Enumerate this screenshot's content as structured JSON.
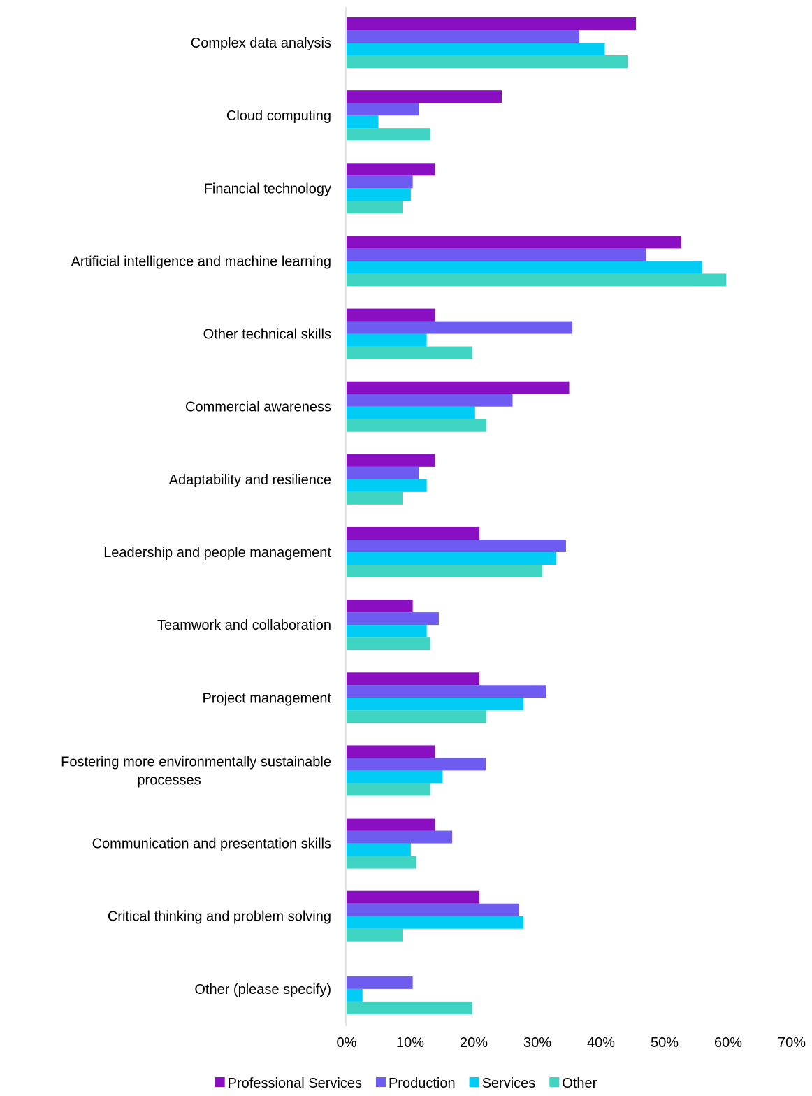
{
  "chart_data": {
    "type": "bar",
    "orientation": "horizontal",
    "title": "",
    "xlabel": "",
    "ylabel": "",
    "xlim": [
      0,
      70
    ],
    "x_ticks": [
      "0%",
      "10%",
      "20%",
      "30%",
      "40%",
      "50%",
      "60%",
      "70%"
    ],
    "grid": false,
    "legend_position": "bottom",
    "categories": [
      [
        "Complex data analysis"
      ],
      [
        "Cloud computing"
      ],
      [
        "Financial technology"
      ],
      [
        "Artificial intelligence and machine learning"
      ],
      [
        "Other technical skills"
      ],
      [
        "Commercial awareness"
      ],
      [
        "Adaptability and resilience"
      ],
      [
        "Leadership and people management"
      ],
      [
        "Teamwork and collaboration"
      ],
      [
        "Project management"
      ],
      [
        "Fostering more environmentally sustainable",
        "processes"
      ],
      [
        "Communication and presentation skills"
      ],
      [
        "Critical thinking and problem solving"
      ],
      [
        "Other (please specify)"
      ]
    ],
    "series": [
      {
        "name": "Professional Services",
        "color": "#8B0FC2",
        "values": [
          45.5,
          24.4,
          13.9,
          52.6,
          13.9,
          35,
          13.9,
          20.9,
          10.4,
          20.9,
          13.9,
          13.9,
          20.9,
          0
        ]
      },
      {
        "name": "Production",
        "color": "#6E5CF0",
        "values": [
          36.6,
          11.4,
          10.4,
          47.1,
          35.5,
          26.1,
          11.4,
          34.5,
          14.5,
          31.4,
          21.9,
          16.6,
          27.1,
          10.4
        ]
      },
      {
        "name": "Services",
        "color": "#00CCF5",
        "values": [
          40.6,
          5,
          10.1,
          55.9,
          12.6,
          20.2,
          12.6,
          33,
          12.6,
          27.8,
          15.1,
          10.1,
          27.8,
          2.5
        ]
      },
      {
        "name": "Other",
        "color": "#3FD4C2",
        "values": [
          44.2,
          13.2,
          8.8,
          59.7,
          19.8,
          22,
          8.8,
          30.8,
          13.2,
          22,
          13.2,
          11,
          8.8,
          19.8
        ]
      }
    ]
  }
}
